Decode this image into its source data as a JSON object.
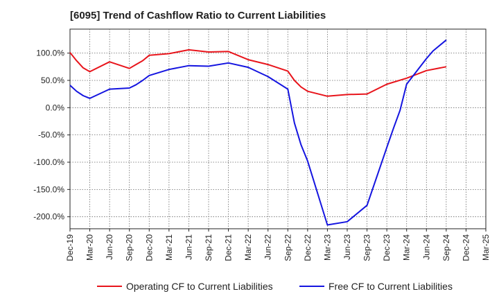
{
  "title": "[6095]  Trend of Cashflow Ratio to Current Liabilities",
  "colors": {
    "operating": "#e8141b",
    "free": "#1414e0"
  },
  "chart_data": {
    "type": "line",
    "title": "[6095]  Trend of Cashflow Ratio to Current Liabilities",
    "xlabel": "",
    "ylabel": "",
    "x_ticks": [
      "Dec-19",
      "Mar-20",
      "Jun-20",
      "Sep-20",
      "Dec-20",
      "Mar-21",
      "Jun-21",
      "Sep-21",
      "Dec-21",
      "Mar-22",
      "Jun-22",
      "Sep-22",
      "Dec-22",
      "Mar-23",
      "Jun-23",
      "Sep-23",
      "Dec-23",
      "Mar-24",
      "Jun-24",
      "Sep-24",
      "Dec-24",
      "Mar-25"
    ],
    "y_ticks": [
      {
        "value": 100,
        "label": "100.0%"
      },
      {
        "value": 50,
        "label": "50.0%"
      },
      {
        "value": 0,
        "label": "0.0%"
      },
      {
        "value": -50,
        "label": "-50.0%"
      },
      {
        "value": -100,
        "label": "-100.0%"
      },
      {
        "value": -150,
        "label": "-150.0%"
      },
      {
        "value": -200,
        "label": "-200.0%"
      }
    ],
    "ylim": [
      -222,
      144
    ],
    "grid": true,
    "legend_position": "bottom",
    "series": [
      {
        "name": "Operating CF to Current Liabilities",
        "color": "#e8141b",
        "points": [
          [
            "Dec-19",
            101
          ],
          [
            "Jan-20",
            86
          ],
          [
            "Feb-20",
            73
          ],
          [
            "Mar-20",
            66
          ],
          [
            "Jun-20",
            84
          ],
          [
            "Sep-20",
            72
          ],
          [
            "Oct-20",
            79
          ],
          [
            "Nov-20",
            86
          ],
          [
            "Dec-20",
            96
          ],
          [
            "Mar-21",
            99
          ],
          [
            "Jun-21",
            106
          ],
          [
            "Sep-21",
            102
          ],
          [
            "Dec-21",
            103
          ],
          [
            "Mar-22",
            88
          ],
          [
            "Jun-22",
            79
          ],
          [
            "Sep-22",
            67
          ],
          [
            "Oct-22",
            50
          ],
          [
            "Nov-22",
            38
          ],
          [
            "Dec-22",
            30
          ],
          [
            "Mar-23",
            21
          ],
          [
            "Jun-23",
            24
          ],
          [
            "Sep-23",
            25
          ],
          [
            "Dec-23",
            43
          ],
          [
            "Mar-24",
            54
          ],
          [
            "Jun-24",
            68
          ],
          [
            "Sep-24",
            75
          ]
        ]
      },
      {
        "name": "Free CF to Current Liabilities",
        "color": "#1414e0",
        "points": [
          [
            "Dec-19",
            41
          ],
          [
            "Jan-20",
            30
          ],
          [
            "Feb-20",
            22
          ],
          [
            "Mar-20",
            17
          ],
          [
            "Jun-20",
            34
          ],
          [
            "Sep-20",
            36
          ],
          [
            "Oct-20",
            42
          ],
          [
            "Nov-20",
            50
          ],
          [
            "Dec-20",
            59
          ],
          [
            "Mar-21",
            70
          ],
          [
            "Jun-21",
            77
          ],
          [
            "Sep-21",
            76
          ],
          [
            "Dec-21",
            82
          ],
          [
            "Mar-22",
            74
          ],
          [
            "Jun-22",
            57
          ],
          [
            "Sep-22",
            34
          ],
          [
            "Oct-22",
            -28
          ],
          [
            "Nov-22",
            -68
          ],
          [
            "Dec-22",
            -98
          ],
          [
            "Mar-23",
            -215
          ],
          [
            "Jun-23",
            -209
          ],
          [
            "Sep-23",
            -179
          ],
          [
            "Dec-23",
            -73
          ],
          [
            "Jan-24",
            -38
          ],
          [
            "Feb-24",
            -5
          ],
          [
            "Mar-24",
            43
          ],
          [
            "Jun-24",
            90
          ],
          [
            "Jul-24",
            104
          ],
          [
            "Sep-24",
            124
          ]
        ]
      }
    ]
  }
}
